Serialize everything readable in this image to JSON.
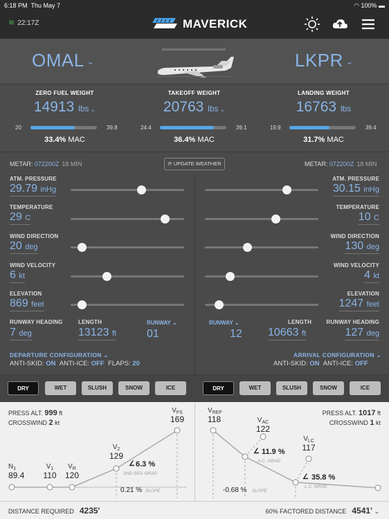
{
  "status": {
    "time": "6:18 PM",
    "date": "Thu May 7",
    "battery": "100%"
  },
  "header": {
    "zulu": "22:17Z",
    "logo": "MAVERICK"
  },
  "route": {
    "origin": "OMAL",
    "destination": "LKPR"
  },
  "weights": [
    {
      "label": "ZERO FUEL WEIGHT",
      "value": "14913",
      "unit": "lbs",
      "min": "20",
      "max": "39.8",
      "mac": "33.4%",
      "mac_label": "MAC",
      "fill": 0.67,
      "dropdown": true
    },
    {
      "label": "TAKEOFF WEIGHT",
      "value": "20763",
      "unit": "lbs",
      "min": "24.4",
      "max": "39.1",
      "mac": "36.4%",
      "mac_label": "MAC",
      "fill": 0.81,
      "dropdown": true
    },
    {
      "label": "LANDING WEIGHT",
      "value": "16763",
      "unit": "lbs",
      "min": "19.9",
      "max": "39.4",
      "mac": "31.7%",
      "mac_label": "MAC",
      "fill": 0.6,
      "dropdown": false
    }
  ],
  "update_weather": "UPDATE WEATHER",
  "departure": {
    "metar_label": "METAR:",
    "metar_code": "072200Z",
    "metar_age": "18 MIN",
    "fields": [
      {
        "label": "ATM. PRESSURE",
        "value": "29.79",
        "unit": "inHg",
        "pos": 0.62
      },
      {
        "label": "TEMPERATURE",
        "value": "29",
        "unit": "C",
        "pos": 0.83
      },
      {
        "label": "WIND DIRECTION",
        "value": "20",
        "unit": "deg",
        "pos": 0.1
      },
      {
        "label": "WIND VELOCITY",
        "value": "6",
        "unit": "kt",
        "pos": 0.32
      },
      {
        "label": "ELEVATION",
        "value": "869",
        "unit": "feet",
        "pos": 0.1
      }
    ],
    "rwy_heading_label": "RUNWAY HEADING",
    "rwy_heading": "7",
    "rwy_heading_unit": "deg",
    "length_label": "LENGTH",
    "length": "13123",
    "length_unit": "ft",
    "runway_label": "RUNWAY",
    "runway": "01",
    "config_title": "DEPARTURE CONFIGURATION",
    "anti_skid_label": "ANTI-SKID:",
    "anti_skid": "ON",
    "anti_ice_label": "ANTI-ICE:",
    "anti_ice": "OFF",
    "flaps_label": "FLAPS:",
    "flaps": "20"
  },
  "arrival": {
    "metar_label": "METAR:",
    "metar_code": "072200Z",
    "metar_age": "18 MIN",
    "fields": [
      {
        "label": "ATM. PRESSURE",
        "value": "30.15",
        "unit": "inHg",
        "pos": 0.72
      },
      {
        "label": "TEMPERATURE",
        "value": "10",
        "unit": "C",
        "pos": 0.62
      },
      {
        "label": "WIND DIRECTION",
        "value": "130",
        "unit": "deg",
        "pos": 0.37
      },
      {
        "label": "WIND VELOCITY",
        "value": "4",
        "unit": "kt",
        "pos": 0.22
      },
      {
        "label": "ELEVATION",
        "value": "1247",
        "unit": "feet",
        "pos": 0.12
      }
    ],
    "rwy_heading_label": "RUNWAY HEADING",
    "rwy_heading": "127",
    "rwy_heading_unit": "deg",
    "length_label": "LENGTH",
    "length": "10663",
    "length_unit": "ft",
    "runway_label": "RUNWAY",
    "runway": "12",
    "config_title": "ARRIVAL CONFIGURATION",
    "anti_skid_label": "ANTI-SKID:",
    "anti_skid": "ON",
    "anti_ice_label": "ANTI-ICE:",
    "anti_ice": "OFF"
  },
  "surfaces": [
    "DRY",
    "WET",
    "SLUSH",
    "SNOW",
    "ICE"
  ],
  "takeoff_chart": {
    "press_alt_label": "PRESS ALT.",
    "press_alt": "999",
    "press_alt_unit": "ft",
    "crosswind_label": "CROSSWIND",
    "crosswind": "2",
    "crosswind_unit": "kt",
    "speeds": [
      {
        "sym": "N",
        "sub": "1",
        "value": "89.4"
      },
      {
        "sym": "V",
        "sub": "1",
        "value": "110"
      },
      {
        "sym": "V",
        "sub": "R",
        "value": "120"
      },
      {
        "sym": "V",
        "sub": "2",
        "value": "129"
      },
      {
        "sym": "V",
        "sub": "FS",
        "value": "169"
      }
    ],
    "grad_value": "6.3 %",
    "grad_label": "2ND SEG GRAD",
    "slope_value": "0.21 %",
    "slope_label": "SLOPE",
    "distance_label": "DISTANCE REQUIRED",
    "distance": "4235'"
  },
  "landing_chart": {
    "press_alt_label": "PRESS ALT.",
    "press_alt": "1017",
    "press_alt_unit": "ft",
    "crosswind_label": "CROSSWIND",
    "crosswind": "1",
    "crosswind_unit": "kt",
    "speeds": [
      {
        "sym": "V",
        "sub": "REF",
        "value": "118"
      },
      {
        "sym": "V",
        "sub": "AC",
        "value": "122"
      },
      {
        "sym": "V",
        "sub": "LC",
        "value": "117"
      }
    ],
    "ac_grad_value": "11.9 %",
    "ac_grad_label": "A.C. GRAD",
    "lc_grad_value": "35.8 %",
    "lc_grad_label": "L.C. GRAD",
    "slope_value": "-0.68 %",
    "slope_label": "SLOPE",
    "distance_label": "60% FACTORED DISTANCE",
    "distance": "4541'"
  },
  "colors": {
    "accent": "#8ab4e6",
    "bar": "#55a7e8",
    "panel": "#4a4a4a"
  }
}
